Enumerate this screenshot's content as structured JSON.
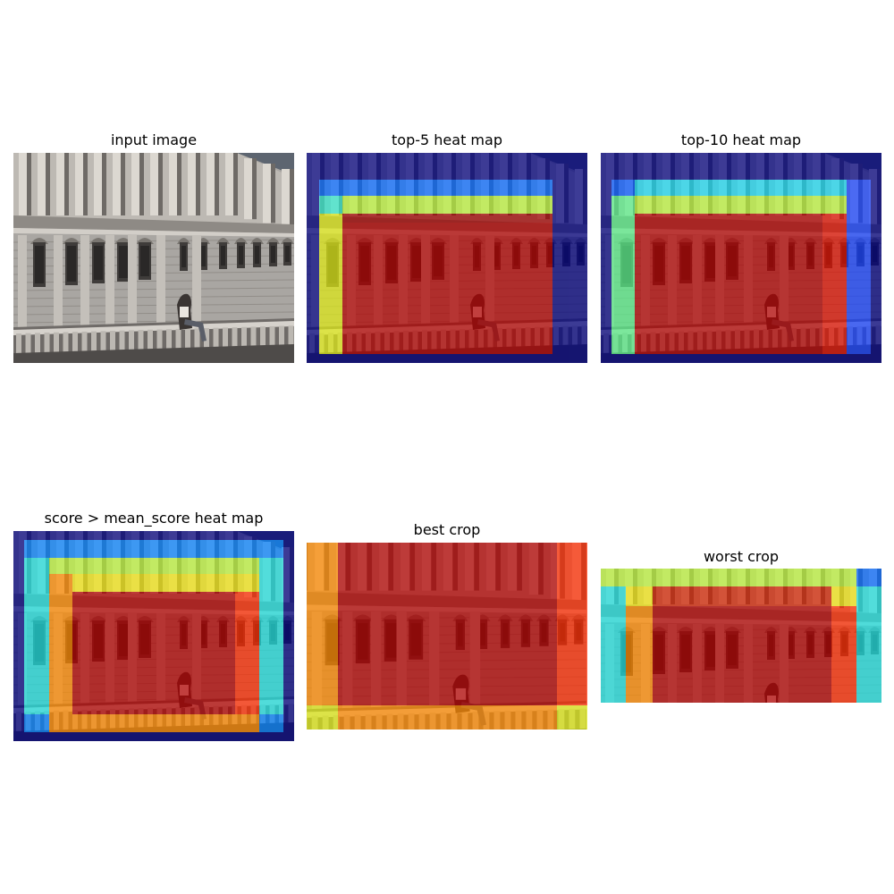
{
  "panels": [
    {
      "title": "input image",
      "heatmap": "none"
    },
    {
      "title": "top-5 heat map",
      "heatmap": "top-5"
    },
    {
      "title": "top-10 heat map",
      "heatmap": "top-10"
    },
    {
      "title": "score > mean_score heat map",
      "heatmap": "score > mean_score"
    },
    {
      "title": "best crop",
      "heatmap": "best"
    },
    {
      "title": "worst crop",
      "heatmap": "worst"
    }
  ],
  "colors": {
    "background": "#ffffff",
    "colormap": [
      "#00007f",
      "#0000ff",
      "#0080ff",
      "#00ffff",
      "#80ff80",
      "#ffff00",
      "#ff8000",
      "#ff0000",
      "#7f0000"
    ]
  }
}
